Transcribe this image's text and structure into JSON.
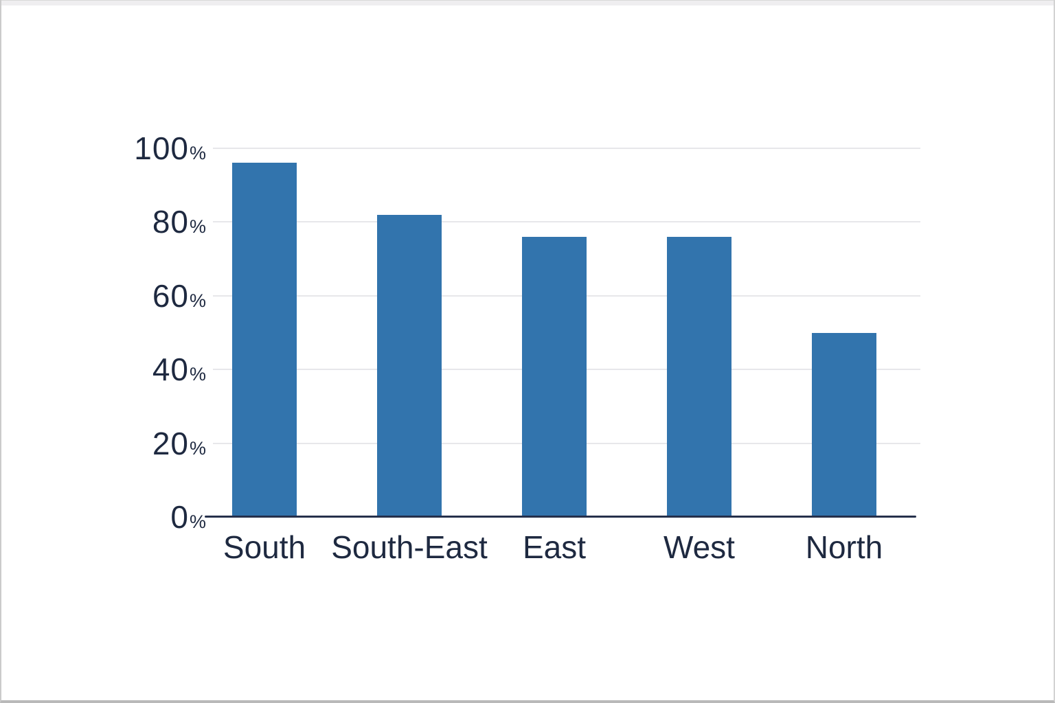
{
  "window": {
    "background": "#ffffff",
    "top_strip_color": "#efeef0",
    "border_color": "#c9c9c9"
  },
  "chart_data": {
    "type": "bar",
    "title": "",
    "xlabel": "",
    "ylabel": "",
    "categories": [
      "South",
      "South-East",
      "East",
      "West",
      "North"
    ],
    "values": [
      96,
      82,
      76,
      76,
      50
    ],
    "value_suffix": "%",
    "ylim": [
      0,
      100
    ],
    "yticks": [
      0,
      20,
      40,
      60,
      80,
      100
    ],
    "ytick_suffix": "%",
    "grid": true,
    "grid_axis": "y",
    "legend": false,
    "bar_color": "#3274ad",
    "axis_color": "#25304b",
    "grid_color": "#e7e7ea",
    "label_color": "#1e2940",
    "background": "#ffffff"
  }
}
